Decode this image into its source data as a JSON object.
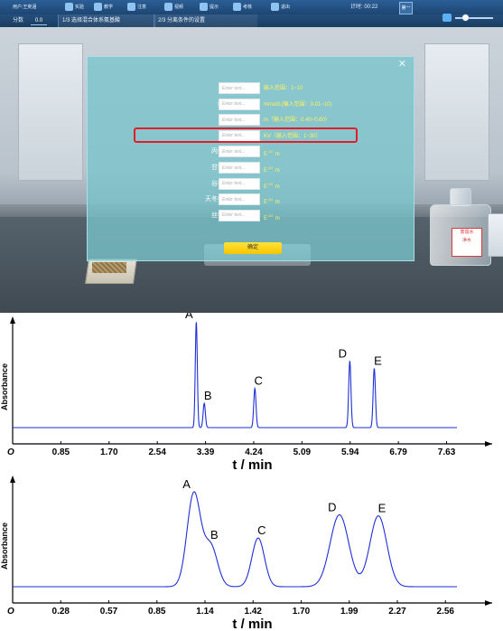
{
  "topbar": {
    "user_label": "用户:王奕涵",
    "items": [
      {
        "icon": "scene-icon",
        "label": "实验"
      },
      {
        "icon": "teach-icon",
        "label": "教学"
      },
      {
        "icon": "alert-icon",
        "label": "注意"
      },
      {
        "icon": "image-icon",
        "label": "视频"
      },
      {
        "icon": "hint-icon",
        "label": "提示"
      },
      {
        "icon": "exam-icon",
        "label": "考核"
      },
      {
        "icon": "monitor-icon",
        "label": "退出"
      }
    ],
    "timer_label": "计时:",
    "timer_value": "00:22",
    "window_button": "第一"
  },
  "secondbar": {
    "score_label": "分数",
    "score_value": "0.0",
    "steps": [
      {
        "num": "1/3",
        "label": "选择混合体系氨基酸"
      },
      {
        "num": "2/3",
        "label": "分离条件的设置"
      }
    ]
  },
  "dialog": {
    "placeholder": "Enter text...",
    "confirm_label": "确定",
    "fields": [
      {
        "label": "缓冲溶液pH",
        "hint": "输入范围：1~10"
      },
      {
        "label": "缓冲溶液浓度",
        "hint": "mmol/L(输入范围：0.01~10)"
      },
      {
        "label": "毛细管长度",
        "hint": "m（输入范围：0.40~0.60）"
      },
      {
        "label": "分离电压",
        "hint": "KV（输入范围：1~30）"
      },
      {
        "label": "丙氨酸离子半径",
        "unit": "E",
        "unit_exp": "-10",
        "unit_suffix": "m"
      },
      {
        "label": "甘氨酸离子半径",
        "unit": "E",
        "unit_exp": "-10",
        "unit_suffix": "m"
      },
      {
        "label": "谷氨酸离子半径",
        "unit": "E",
        "unit_exp": "-10",
        "unit_suffix": "m"
      },
      {
        "label": "天冬氨酸离子半径",
        "unit": "E",
        "unit_exp": "-10",
        "unit_suffix": "m"
      },
      {
        "label": "丝氨酸离子半径",
        "unit": "E",
        "unit_exp": "-10",
        "unit_suffix": "m"
      }
    ]
  },
  "bottle_label": "蒸馏水",
  "bottle_label2": "净水",
  "chart_data": [
    {
      "type": "line",
      "xlabel": "t / min",
      "ylabel": "Absorbance",
      "origin_label": "O",
      "xticks": [
        "0.85",
        "1.70",
        "2.54",
        "3.39",
        "4.24",
        "5.09",
        "5.94",
        "6.79",
        "7.63"
      ],
      "tick_step": 0.848,
      "xlim": [
        0,
        8.1
      ],
      "peaks": [
        {
          "label": "A",
          "t": 3.23,
          "height": 1.0,
          "width": 0.018
        },
        {
          "label": "B",
          "t": 3.37,
          "height": 0.23,
          "width": 0.02
        },
        {
          "label": "C",
          "t": 4.26,
          "height": 0.37,
          "width": 0.02
        },
        {
          "label": "D",
          "t": 5.93,
          "height": 0.63,
          "width": 0.02
        },
        {
          "label": "E",
          "t": 6.36,
          "height": 0.56,
          "width": 0.02
        }
      ]
    },
    {
      "type": "line",
      "xlabel": "t / min",
      "ylabel": "Absorbance",
      "origin_label": "O",
      "xticks": [
        "0.28",
        "0.57",
        "0.85",
        "1.14",
        "1.42",
        "1.70",
        "1.99",
        "2.27",
        "2.56"
      ],
      "tick_step": 0.284,
      "xlim": [
        0,
        2.72
      ],
      "peaks": [
        {
          "label": "A",
          "t": 1.07,
          "height": 0.88,
          "width": 0.04
        },
        {
          "label": "B",
          "t": 1.17,
          "height": 0.38,
          "width": 0.04
        },
        {
          "label": "C",
          "t": 1.45,
          "height": 0.46,
          "width": 0.037
        },
        {
          "label": "D",
          "t": 1.93,
          "height": 0.68,
          "width": 0.055
        },
        {
          "label": "E",
          "t": 2.16,
          "height": 0.67,
          "width": 0.05
        }
      ]
    }
  ]
}
